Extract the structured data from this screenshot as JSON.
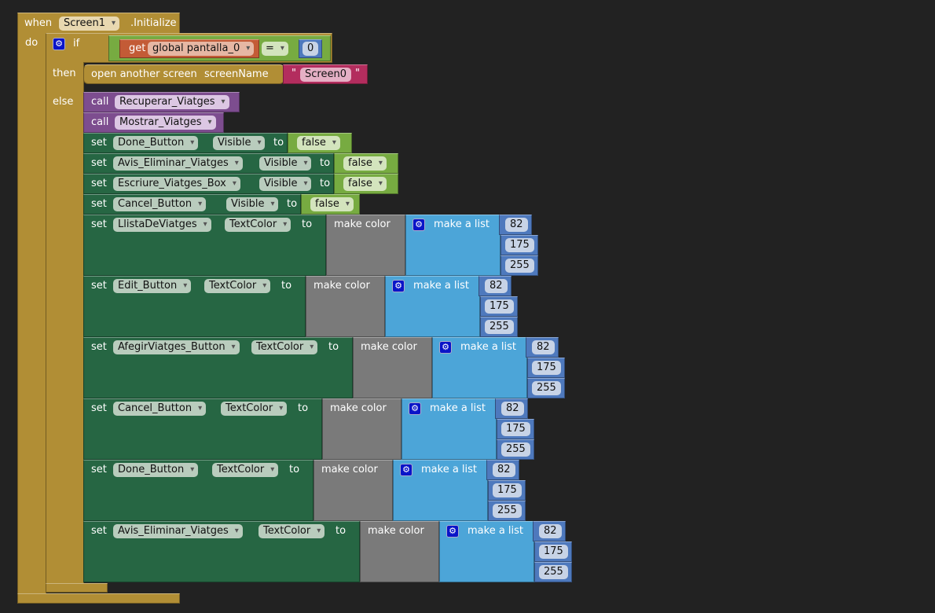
{
  "event": {
    "when": "when",
    "component": "Screen1",
    "event": ".Initialize",
    "do": "do"
  },
  "if_block": {
    "if": "if",
    "then": "then",
    "else": "else",
    "get": "get",
    "variable": "global pantalla_0",
    "operator": "=",
    "value": "0"
  },
  "open_screen": {
    "label": "open another screen",
    "param": "screenName",
    "quote_open": "\"",
    "value": "Screen0",
    "quote_close": "\""
  },
  "calls": [
    {
      "call": "call",
      "name": "Recuperar_Viatges"
    },
    {
      "call": "call",
      "name": "Mostrar_Viatges"
    }
  ],
  "visible_setters": [
    {
      "set": "set",
      "component": "Done_Button",
      "property": "Visible",
      "to": "to",
      "value": "false"
    },
    {
      "set": "set",
      "component": "Avis_Eliminar_Viatges",
      "property": "Visible",
      "to": "to",
      "value": "false"
    },
    {
      "set": "set",
      "component": "Escriure_Viatges_Box",
      "property": "Visible",
      "to": "to",
      "value": "false"
    },
    {
      "set": "set",
      "component": "Cancel_Button",
      "property": "Visible",
      "to": "to",
      "value": "false"
    }
  ],
  "color_setters": [
    {
      "set": "set",
      "component": "LlistaDeViatges",
      "property": "TextColor",
      "to": "to",
      "make_color": "make color",
      "make_list": "make a list",
      "values": [
        "82",
        "175",
        "255"
      ]
    },
    {
      "set": "set",
      "component": "Edit_Button",
      "property": "TextColor",
      "to": "to",
      "make_color": "make color",
      "make_list": "make a list",
      "values": [
        "82",
        "175",
        "255"
      ]
    },
    {
      "set": "set",
      "component": "AfegirViatges_Button",
      "property": "TextColor",
      "to": "to",
      "make_color": "make color",
      "make_list": "make a list",
      "values": [
        "82",
        "175",
        "255"
      ]
    },
    {
      "set": "set",
      "component": "Cancel_Button",
      "property": "TextColor",
      "to": "to",
      "make_color": "make color",
      "make_list": "make a list",
      "values": [
        "82",
        "175",
        "255"
      ]
    },
    {
      "set": "set",
      "component": "Done_Button",
      "property": "TextColor",
      "to": "to",
      "make_color": "make color",
      "make_list": "make a list",
      "values": [
        "82",
        "175",
        "255"
      ]
    },
    {
      "set": "set",
      "component": "Avis_Eliminar_Viatges",
      "property": "TextColor",
      "to": "to",
      "make_color": "make color",
      "make_list": "make a list",
      "values": [
        "82",
        "175",
        "255"
      ]
    }
  ],
  "colors": {
    "event": "#b18e35",
    "setter": "#266643",
    "logic": "#77ab41",
    "procedure": "#7d4d8f",
    "make_color": "#7a7a7a",
    "make_list": "#4ca5d8",
    "number": "#4e79bd",
    "text": "#b32d5e",
    "variable": "#c35b36"
  }
}
